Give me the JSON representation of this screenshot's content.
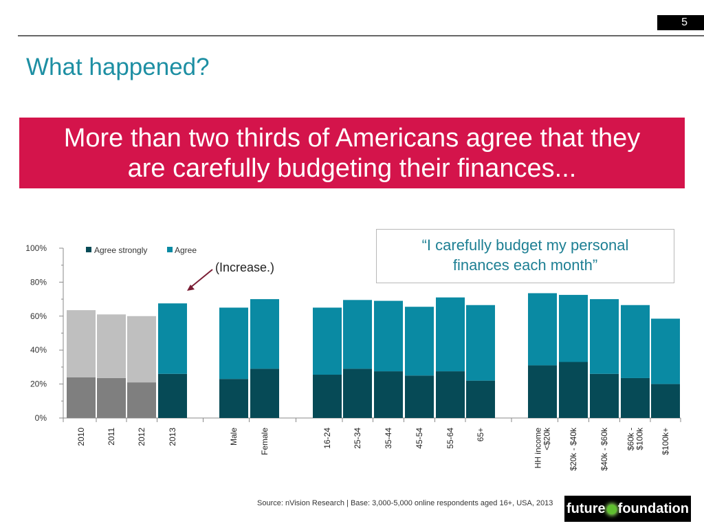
{
  "slide": {
    "page_number": "5",
    "heading": "What happened?",
    "banner_line1": "More than two thirds of Americans agree that they",
    "banner_line2": "are carefully budgeting their finances...",
    "quote_line1": "“I carefully budget my personal",
    "quote_line2": "finances each month”",
    "source": "Source: nVision Research | Base: 3,000-5,000 online respondents aged 16+, USA, 2013",
    "logo_left": "future",
    "logo_right": "foundation"
  },
  "colors": {
    "banner": "#d4144b",
    "heading": "#1d8fa3",
    "agree_strongly_highlight": "#064a56",
    "agree_highlight": "#0a8aa3",
    "agree_strongly_past": "#7f7f7f",
    "agree_past": "#bfbfbf",
    "arrow": "#7a1d34"
  },
  "chart_data": {
    "type": "bar",
    "stacked": true,
    "categories": [
      "2010",
      "2011",
      "2012",
      "2013",
      "Male",
      "Female",
      "16-24",
      "25-34",
      "35-44",
      "45-54",
      "55-64",
      "65+",
      "HH income <$20k",
      "$20k - $40k",
      "$40k - $60k",
      "$60k - $100k",
      "$100k+"
    ],
    "series": [
      {
        "name": "Agree strongly",
        "values": [
          24,
          23.5,
          21,
          26,
          23,
          29,
          25.5,
          29,
          27.5,
          25,
          27.5,
          22,
          31,
          33,
          26,
          23.5,
          20
        ]
      },
      {
        "name": "Agree",
        "values": [
          39.5,
          37.5,
          39,
          41.5,
          42,
          41,
          39.5,
          40.5,
          41.5,
          40.5,
          43.5,
          44.5,
          42.5,
          39.5,
          44,
          43,
          38.5
        ]
      }
    ],
    "ylim": [
      0,
      100
    ],
    "yticks": [
      "0%",
      "20%",
      "40%",
      "60%",
      "80%",
      "100%"
    ],
    "legend_position": "top-left",
    "annotation": "(Increase.)",
    "grid": false
  }
}
